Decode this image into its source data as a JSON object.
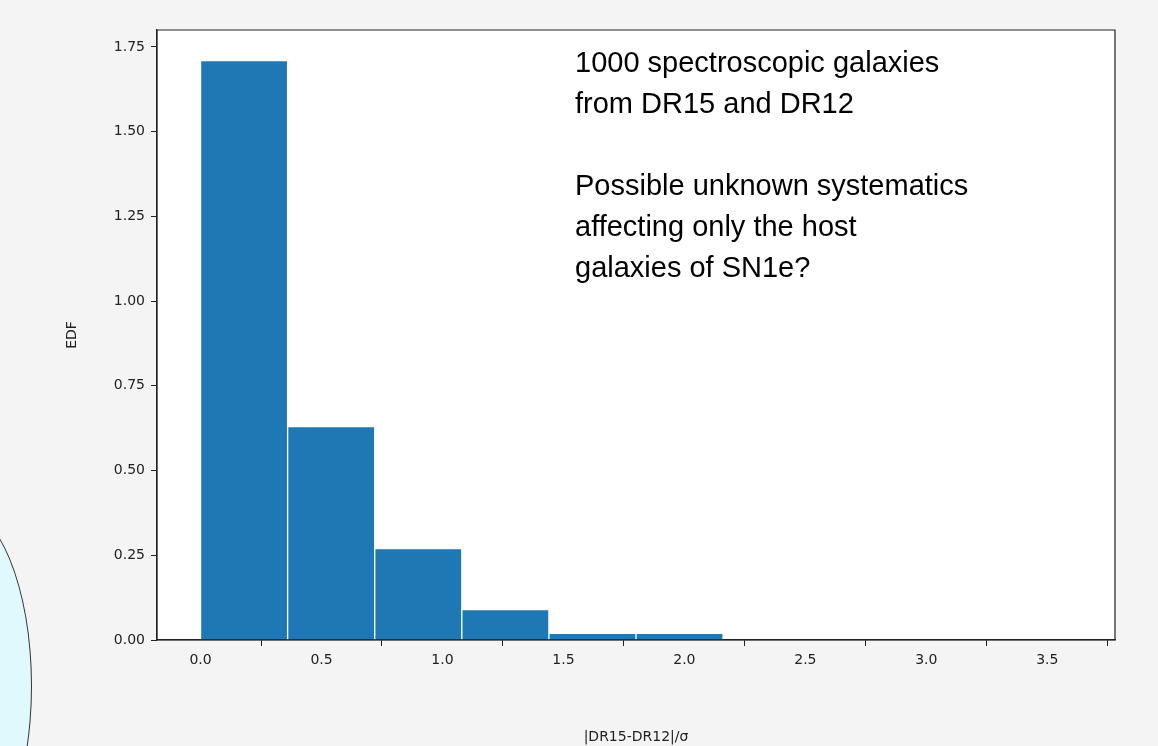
{
  "chart_data": {
    "type": "histogram",
    "xlabel": "|DR15-DR12|/σ",
    "ylabel": "EDF",
    "bins": [
      0,
      0.36,
      0.72,
      1.08,
      1.44,
      1.8,
      2.16,
      2.52,
      2.88,
      3.24,
      3.6
    ],
    "values": [
      1.71,
      0.63,
      0.27,
      0.09,
      0.02,
      0.02,
      0,
      0,
      0,
      0
    ],
    "color": "#1f77b4",
    "xlim": [
      -0.18,
      3.78
    ],
    "xticks": [
      {
        "value": 0,
        "label": "0.0"
      },
      0.5,
      {
        "value": 1,
        "label": "1.0"
      },
      1.5,
      {
        "value": 2,
        "label": "2.0"
      },
      2.5,
      {
        "value": 3,
        "label": "3.0"
      },
      3.5
    ],
    "ylim": [
      0,
      1.8
    ],
    "yticks": [
      {
        "value": 0,
        "label": "0.00"
      },
      0.25,
      {
        "value": 0.5,
        "label": "0.50"
      },
      0.75,
      {
        "value": 1,
        "label": "1.00"
      },
      1.25,
      {
        "value": 1.5,
        "label": "1.50"
      },
      1.75
    ],
    "grid": false,
    "legend": false,
    "annotations": [
      "1000 spectroscopic galaxies\nfrom DR15 and DR12",
      "Possible unknown systematics\naffecting only the host\ngalaxies of SN1e?"
    ]
  }
}
